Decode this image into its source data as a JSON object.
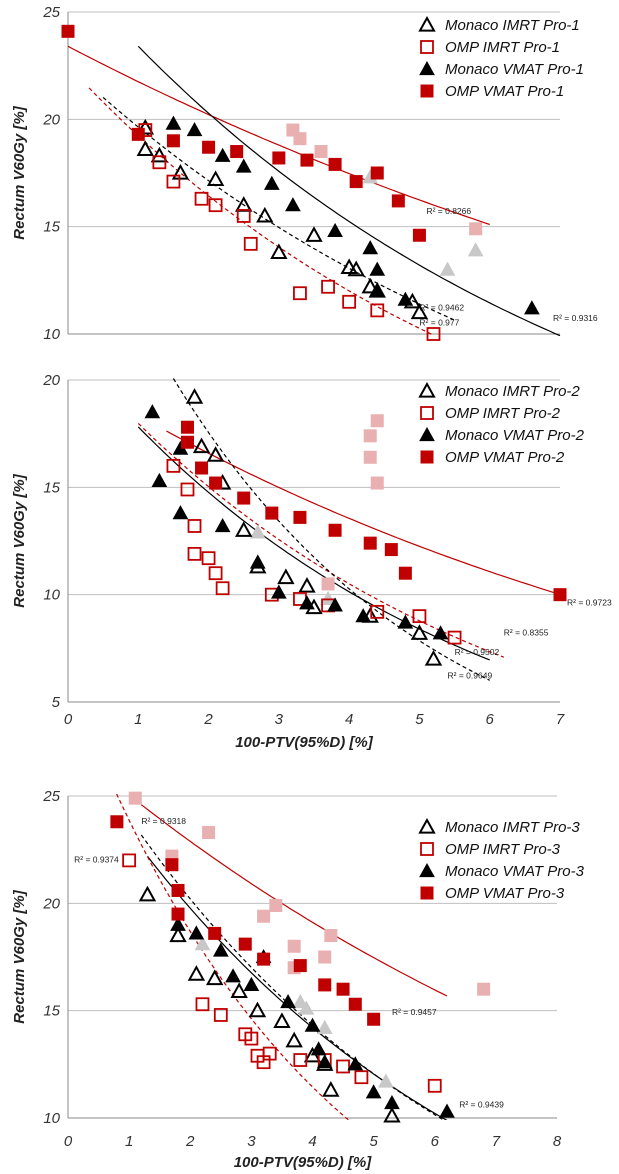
{
  "colors": {
    "monaco": "#000000",
    "omp": "#c00000",
    "outlier_black": "#c8c8c8",
    "outlier_red": "#e8b0b0",
    "grid": "#bfbfbf"
  },
  "chart_data": [
    {
      "type": "scatter",
      "title": "",
      "xlabel": "",
      "ylabel": "Rectum V60Gy [%]",
      "xlim": [
        0,
        7
      ],
      "ylim": [
        10,
        25
      ],
      "yticks": [
        "10",
        "15",
        "20",
        "25"
      ],
      "xticks": [],
      "grid": "horizontal",
      "legend": "top-right",
      "series": [
        {
          "name": "Monaco IMRT Pro-1",
          "marker": "triangle-open",
          "color": "#000000",
          "points": [
            [
              1.1,
              19.6
            ],
            [
              1.1,
              18.6
            ],
            [
              1.3,
              18.3
            ],
            [
              1.6,
              17.5
            ],
            [
              2.1,
              17.2
            ],
            [
              2.5,
              16
            ],
            [
              2.8,
              15.5
            ],
            [
              3.0,
              13.8
            ],
            [
              3.5,
              14.6
            ],
            [
              4.0,
              13.1
            ],
            [
              4.1,
              13.0
            ],
            [
              4.3,
              12.2
            ],
            [
              4.4,
              12.0
            ],
            [
              4.9,
              11.5
            ],
            [
              5.0,
              11.0
            ]
          ]
        },
        {
          "name": "OMP IMRT Pro-1",
          "marker": "square-open",
          "color": "#c00000",
          "points": [
            [
              1.1,
              19.5
            ],
            [
              1.3,
              18.0
            ],
            [
              1.5,
              17.1
            ],
            [
              1.9,
              16.3
            ],
            [
              2.1,
              16.0
            ],
            [
              2.5,
              15.5
            ],
            [
              2.6,
              14.2
            ],
            [
              3.3,
              11.9
            ],
            [
              3.7,
              12.2
            ],
            [
              4.0,
              11.5
            ],
            [
              4.4,
              11.1
            ],
            [
              5.2,
              10.0
            ]
          ]
        },
        {
          "name": "Monaco VMAT Pro-1",
          "marker": "triangle-filled",
          "color": "#000000",
          "points": [
            [
              1.5,
              19.8
            ],
            [
              1.8,
              19.5
            ],
            [
              2.2,
              18.3
            ],
            [
              2.5,
              17.8
            ],
            [
              2.9,
              17.0
            ],
            [
              3.2,
              16.0
            ],
            [
              3.8,
              14.8
            ],
            [
              4.3,
              14.0
            ],
            [
              4.4,
              13.0
            ],
            [
              4.4,
              12.0
            ],
            [
              4.8,
              11.6
            ],
            [
              6.6,
              11.2
            ]
          ]
        },
        {
          "name": "OMP VMAT Pro-1",
          "marker": "square-filled",
          "color": "#c00000",
          "points": [
            [
              0.0,
              24.1
            ],
            [
              1.0,
              19.3
            ],
            [
              1.5,
              19.0
            ],
            [
              2.0,
              18.7
            ],
            [
              2.4,
              18.5
            ],
            [
              3.0,
              18.2
            ],
            [
              3.4,
              18.1
            ],
            [
              3.8,
              17.9
            ],
            [
              4.1,
              17.1
            ],
            [
              4.4,
              17.5
            ],
            [
              4.7,
              16.2
            ],
            [
              5.0,
              14.6
            ]
          ]
        },
        {
          "name": "",
          "marker": "triangle-outlier",
          "color": "#c8c8c8",
          "points": [
            [
              4.3,
              17.3
            ],
            [
              5.4,
              13.0
            ],
            [
              5.8,
              13.9
            ]
          ]
        },
        {
          "name": "",
          "marker": "square-outlier",
          "color": "#e8b0b0",
          "points": [
            [
              3.2,
              19.5
            ],
            [
              3.3,
              19.1
            ],
            [
              3.6,
              18.5
            ],
            [
              5.8,
              14.9
            ]
          ]
        }
      ],
      "curves": [
        {
          "color": "#c00000",
          "dash": "solid",
          "a": 23.4,
          "b": 0.073,
          "x0": 0.0,
          "x1": 6.0,
          "r2": "R² = 0.8266",
          "r2_at": [
            5.1,
            15.6
          ]
        },
        {
          "color": "#000000",
          "dash": "solid",
          "a": 27.0,
          "b": 0.143,
          "x0": 1.0,
          "x1": 7.0,
          "r2": "R² = 0.9316",
          "r2_at": [
            6.9,
            10.6
          ]
        },
        {
          "color": "#000000",
          "dash": "dashed",
          "a": 22.5,
          "b": 0.136,
          "x0": 0.5,
          "x1": 5.5,
          "r2": "R² = 0.9462",
          "r2_at": [
            5.0,
            11.1
          ]
        },
        {
          "color": "#c00000",
          "dash": "dashed",
          "a": 22.5,
          "b": 0.157,
          "x0": 0.3,
          "x1": 5.2,
          "r2": "R² = 0.977",
          "r2_at": [
            5.0,
            10.4
          ]
        }
      ]
    },
    {
      "type": "scatter",
      "title": "",
      "xlabel": "100-PTV(95%D) [%]",
      "ylabel": "Rectum V60Gy [%]",
      "xlim": [
        0,
        7
      ],
      "ylim": [
        5,
        20
      ],
      "yticks": [
        "5",
        "10",
        "15",
        "20"
      ],
      "xticks": [
        "0",
        "1",
        "2",
        "3",
        "4",
        "5",
        "6",
        "7"
      ],
      "grid": "horizontal",
      "legend": "top-right",
      "series": [
        {
          "name": "Monaco IMRT Pro-2",
          "marker": "triangle-open",
          "color": "#000000",
          "points": [
            [
              1.8,
              19.2
            ],
            [
              1.9,
              16.9
            ],
            [
              2.1,
              16.5
            ],
            [
              2.2,
              15.2
            ],
            [
              2.5,
              13.0
            ],
            [
              2.7,
              11.3
            ],
            [
              3.1,
              10.8
            ],
            [
              3.4,
              10.4
            ],
            [
              3.5,
              9.4
            ],
            [
              4.3,
              9.0
            ],
            [
              5.0,
              8.2
            ],
            [
              5.2,
              7.0
            ]
          ]
        },
        {
          "name": "OMP IMRT Pro-2",
          "marker": "square-open",
          "color": "#c00000",
          "points": [
            [
              1.5,
              16.0
            ],
            [
              1.7,
              14.9
            ],
            [
              1.8,
              13.2
            ],
            [
              1.8,
              11.9
            ],
            [
              2.0,
              11.7
            ],
            [
              2.1,
              11.0
            ],
            [
              2.2,
              10.3
            ],
            [
              2.9,
              10.0
            ],
            [
              3.3,
              9.8
            ],
            [
              3.7,
              9.5
            ],
            [
              4.4,
              9.2
            ],
            [
              5.0,
              9.0
            ],
            [
              5.5,
              8.0
            ]
          ]
        },
        {
          "name": "Monaco VMAT Pro-2",
          "marker": "triangle-filled",
          "color": "#000000",
          "points": [
            [
              1.2,
              18.5
            ],
            [
              1.3,
              15.3
            ],
            [
              1.6,
              13.8
            ],
            [
              1.6,
              16.8
            ],
            [
              2.2,
              13.2
            ],
            [
              2.7,
              11.5
            ],
            [
              3.0,
              10.1
            ],
            [
              3.4,
              9.6
            ],
            [
              3.8,
              9.5
            ],
            [
              4.2,
              9.0
            ],
            [
              4.8,
              8.7
            ],
            [
              5.3,
              8.2
            ]
          ]
        },
        {
          "name": "OMP VMAT Pro-2",
          "marker": "square-filled",
          "color": "#c00000",
          "points": [
            [
              1.7,
              17.8
            ],
            [
              1.7,
              17.1
            ],
            [
              1.9,
              15.9
            ],
            [
              2.1,
              15.2
            ],
            [
              2.5,
              14.5
            ],
            [
              2.9,
              13.8
            ],
            [
              3.3,
              13.6
            ],
            [
              3.8,
              13.0
            ],
            [
              4.3,
              12.4
            ],
            [
              4.6,
              12.1
            ],
            [
              4.8,
              11.0
            ],
            [
              7.0,
              10.0
            ]
          ]
        },
        {
          "name": "",
          "marker": "triangle-outlier",
          "color": "#c8c8c8",
          "points": [
            [
              2.7,
              12.9
            ],
            [
              3.7,
              9.8
            ]
          ]
        },
        {
          "name": "",
          "marker": "square-outlier",
          "color": "#e8b0b0",
          "points": [
            [
              3.7,
              10.5
            ],
            [
              4.3,
              17.4
            ],
            [
              4.4,
              18.1
            ],
            [
              4.3,
              16.4
            ],
            [
              4.4,
              15.2
            ]
          ]
        }
      ],
      "curves": [
        {
          "color": "#c00000",
          "dash": "solid",
          "a": 20.3,
          "b": 0.101,
          "x0": 1.4,
          "x1": 7.0,
          "r2": "R² = 0.9723",
          "r2_at": [
            7.1,
            9.5
          ]
        },
        {
          "color": "#c00000",
          "dash": "dashed",
          "a": 21.5,
          "b": 0.179,
          "x0": 1.0,
          "x1": 6.2,
          "r2": "R² = 0.8355",
          "r2_at": [
            6.2,
            8.1
          ]
        },
        {
          "color": "#000000",
          "dash": "solid",
          "a": 21.5,
          "b": 0.188,
          "x0": 1.0,
          "x1": 6.0,
          "r2": "R² = 0.9502",
          "r2_at": [
            5.5,
            7.2
          ]
        },
        {
          "color": "#000000",
          "dash": "dashed",
          "a": 30.0,
          "b": 0.268,
          "x0": 1.5,
          "x1": 6.0,
          "r2": "R² = 0.9649",
          "r2_at": [
            5.4,
            6.1
          ]
        }
      ]
    },
    {
      "type": "scatter",
      "title": "",
      "xlabel": "100-PTV(95%D) [%]",
      "ylabel": "Rectum V60Gy [%]",
      "xlim": [
        0,
        8
      ],
      "ylim": [
        10,
        25
      ],
      "yticks": [
        "10",
        "15",
        "20",
        "25"
      ],
      "xticks": [
        "0",
        "1",
        "2",
        "3",
        "4",
        "5",
        "6",
        "7",
        "8"
      ],
      "grid": "horizontal",
      "legend": "top-right",
      "series": [
        {
          "name": "Monaco IMRT Pro-3",
          "marker": "triangle-open",
          "color": "#000000",
          "points": [
            [
              1.3,
              20.4
            ],
            [
              1.8,
              18.5
            ],
            [
              2.1,
              16.7
            ],
            [
              2.4,
              16.5
            ],
            [
              2.8,
              15.9
            ],
            [
              3.1,
              15.0
            ],
            [
              3.5,
              14.5
            ],
            [
              3.7,
              13.6
            ],
            [
              4.0,
              12.9
            ],
            [
              4.2,
              12.5
            ],
            [
              4.3,
              11.3
            ],
            [
              5.3,
              10.1
            ]
          ]
        },
        {
          "name": "OMP IMRT Pro-3",
          "marker": "square-open",
          "color": "#c00000",
          "points": [
            [
              1.0,
              22.0
            ],
            [
              2.2,
              15.3
            ],
            [
              2.5,
              14.8
            ],
            [
              2.9,
              13.9
            ],
            [
              3.0,
              13.7
            ],
            [
              3.1,
              12.9
            ],
            [
              3.2,
              12.6
            ],
            [
              3.3,
              13.0
            ],
            [
              3.8,
              12.7
            ],
            [
              4.2,
              12.7
            ],
            [
              4.5,
              12.4
            ],
            [
              4.8,
              11.9
            ],
            [
              6.0,
              11.5
            ]
          ]
        },
        {
          "name": "Monaco VMAT Pro-3",
          "marker": "triangle-filled",
          "color": "#000000",
          "points": [
            [
              1.8,
              19.0
            ],
            [
              2.1,
              18.6
            ],
            [
              2.5,
              17.8
            ],
            [
              2.7,
              16.6
            ],
            [
              3.0,
              16.2
            ],
            [
              3.2,
              17.5
            ],
            [
              3.6,
              15.4
            ],
            [
              4.0,
              14.3
            ],
            [
              4.1,
              13.2
            ],
            [
              4.2,
              12.6
            ],
            [
              4.7,
              12.5
            ],
            [
              5.0,
              11.2
            ],
            [
              5.3,
              10.7
            ],
            [
              6.2,
              10.3
            ]
          ]
        },
        {
          "name": "OMP VMAT Pro-3",
          "marker": "square-filled",
          "color": "#c00000",
          "points": [
            [
              0.8,
              23.8
            ],
            [
              1.7,
              21.8
            ],
            [
              1.8,
              20.6
            ],
            [
              1.8,
              19.5
            ],
            [
              2.4,
              18.6
            ],
            [
              2.9,
              18.1
            ],
            [
              3.2,
              17.4
            ],
            [
              3.8,
              17.1
            ],
            [
              4.2,
              16.2
            ],
            [
              4.5,
              16.0
            ],
            [
              4.7,
              15.3
            ],
            [
              5.0,
              14.6
            ]
          ]
        },
        {
          "name": "",
          "marker": "triangle-outlier",
          "color": "#c8c8c8",
          "points": [
            [
              2.2,
              18.1
            ],
            [
              3.8,
              15.4
            ],
            [
              3.9,
              15.1
            ],
            [
              4.2,
              14.2
            ],
            [
              5.2,
              11.7
            ]
          ]
        },
        {
          "name": "",
          "marker": "square-outlier",
          "color": "#e8b0b0",
          "points": [
            [
              1.1,
              24.9
            ],
            [
              1.7,
              22.2
            ],
            [
              2.3,
              23.3
            ],
            [
              3.2,
              19.4
            ],
            [
              3.4,
              19.9
            ],
            [
              3.7,
              18.0
            ],
            [
              4.2,
              17.5
            ],
            [
              4.3,
              18.5
            ],
            [
              6.8,
              16.0
            ],
            [
              3.7,
              17.0
            ]
          ]
        }
      ],
      "curves": [
        {
          "color": "#c00000",
          "dash": "solid",
          "a": 27.4,
          "b": 0.09,
          "x0": 1.2,
          "x1": 6.2,
          "r2": "R² = 0.9457",
          "r2_at": [
            5.3,
            14.8
          ]
        },
        {
          "color": "#000000",
          "dash": "solid",
          "a": 27.5,
          "b": 0.165,
          "x0": 1.3,
          "x1": 7.0,
          "r2": "R² = 0.9318",
          "r2_at": [
            1.2,
            23.7
          ]
        },
        {
          "color": "#000000",
          "dash": "dashed",
          "a": 28.5,
          "b": 0.172,
          "x0": 1.2,
          "x1": 6.4,
          "r2": "R² = 0.9439",
          "r2_at": [
            6.4,
            10.5
          ]
        },
        {
          "color": "#c00000",
          "dash": "dashed",
          "a": 30.5,
          "b": 0.245,
          "x0": 0.7,
          "x1": 5.5,
          "r2": "R² = 0.9374",
          "r2_at": [
            0.1,
            21.9
          ]
        }
      ]
    }
  ]
}
